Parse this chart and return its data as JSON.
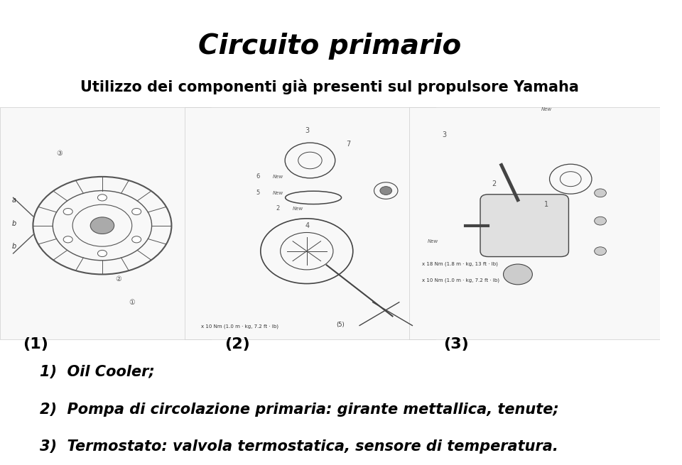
{
  "title": "Circuito primario",
  "subtitle": "Utilizzo dei componenti già presenti sul propulsore Yamaha",
  "label1": "(1)",
  "label2": "(2)",
  "label3": "(3)",
  "line1": "1)  Oil Cooler;",
  "line2": "2)  Pompa di circolazione primaria: girante mettallica, tenute;",
  "line3": "3)  Termostato: valvola termostatica, sensore di temperatura.",
  "bg_color": "#ffffff",
  "text_color": "#000000",
  "title_fontsize": 28,
  "subtitle_fontsize": 15,
  "label_fontsize": 16,
  "body_fontsize": 15
}
